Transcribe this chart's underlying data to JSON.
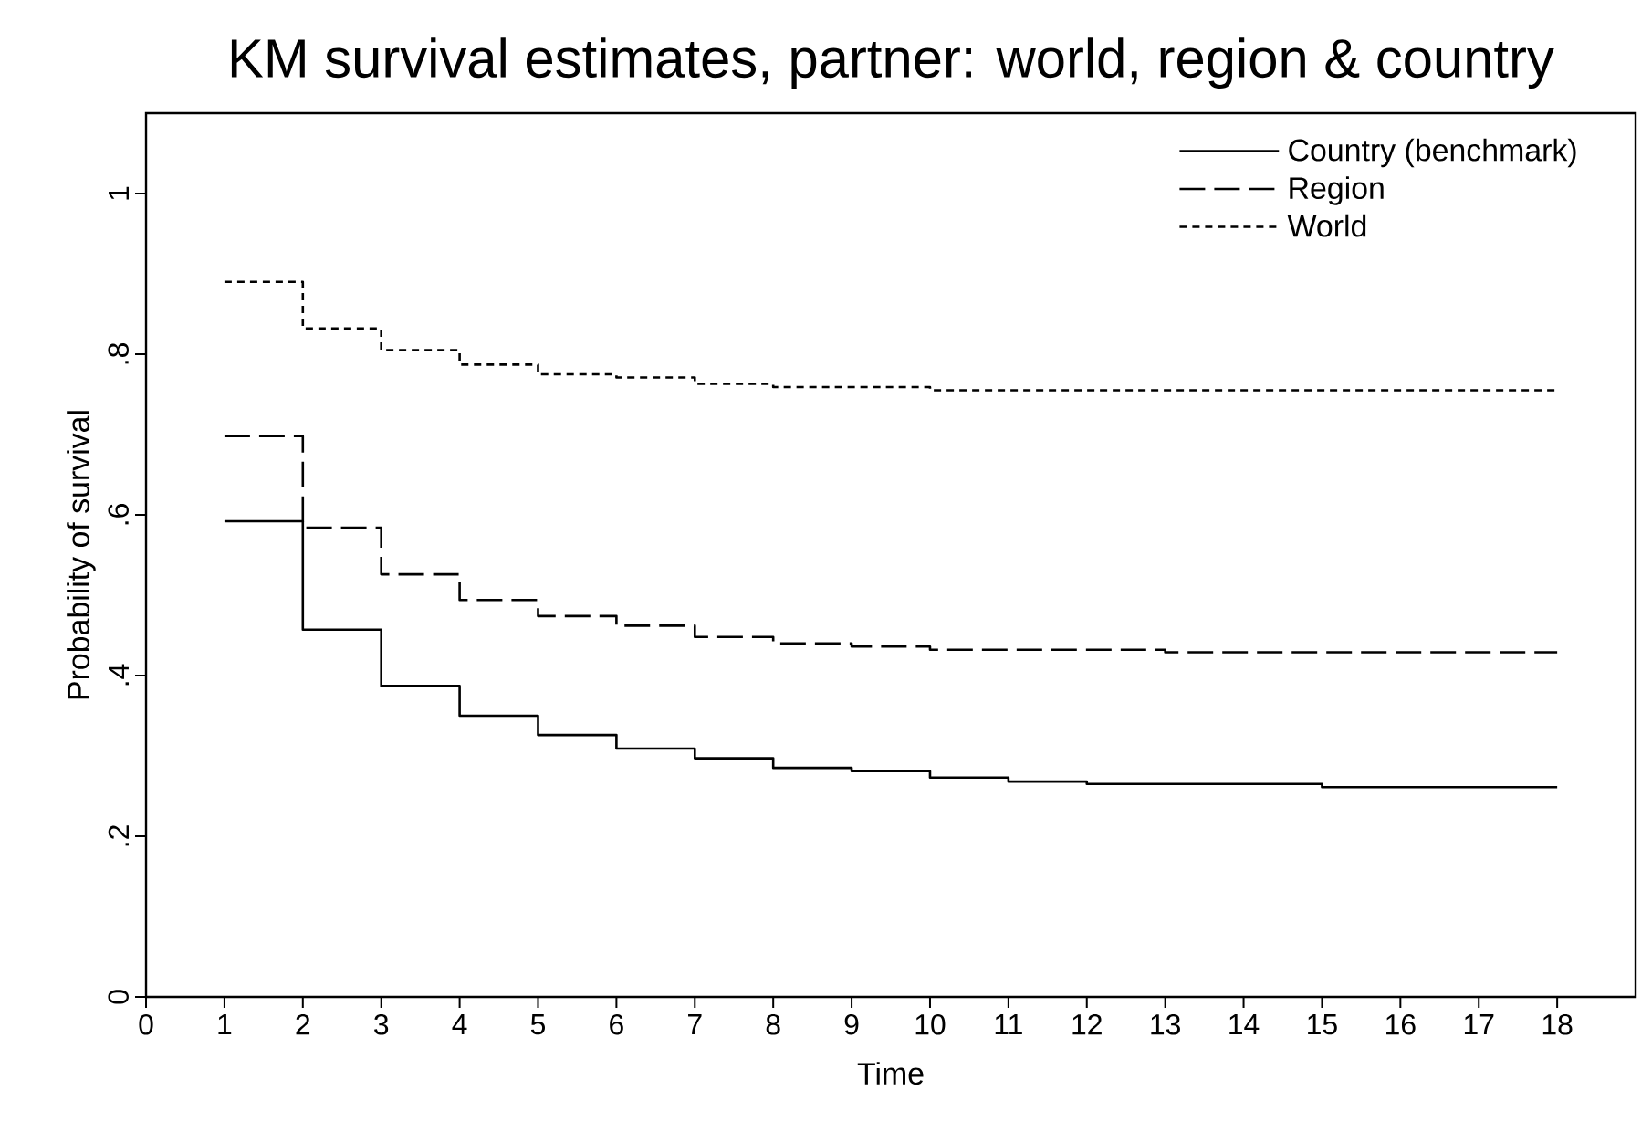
{
  "chart_data": {
    "type": "step",
    "title": "KM survival estimates, partner: world, region & country",
    "xlabel": "Time",
    "ylabel": "Probability of survival",
    "x": [
      1,
      2,
      3,
      4,
      5,
      6,
      7,
      8,
      9,
      10,
      11,
      12,
      13,
      14,
      15,
      16,
      17,
      18
    ],
    "series": [
      {
        "name": "Country (benchmark)",
        "color": "#000000",
        "line_style": "solid",
        "values": [
          0.592,
          0.457,
          0.387,
          0.35,
          0.326,
          0.309,
          0.297,
          0.285,
          0.281,
          0.273,
          0.268,
          0.265,
          0.265,
          0.265,
          0.261,
          0.261,
          0.261,
          0.261
        ]
      },
      {
        "name": "Region",
        "color": "#000000",
        "line_style": "dashed",
        "values": [
          0.698,
          0.584,
          0.526,
          0.494,
          0.474,
          0.462,
          0.448,
          0.44,
          0.436,
          0.432,
          0.432,
          0.432,
          0.429,
          0.429,
          0.429,
          0.429,
          0.429,
          0.429
        ]
      },
      {
        "name": "World",
        "color": "#000000",
        "line_style": "dotted",
        "values": [
          0.89,
          0.832,
          0.805,
          0.787,
          0.775,
          0.771,
          0.763,
          0.759,
          0.759,
          0.755,
          0.755,
          0.755,
          0.755,
          0.755,
          0.755,
          0.755,
          0.755,
          0.755
        ]
      }
    ],
    "xlim": [
      0,
      19
    ],
    "ylim": [
      0,
      1.1
    ],
    "xticks": [
      0,
      1,
      2,
      3,
      4,
      5,
      6,
      7,
      8,
      9,
      10,
      11,
      12,
      13,
      14,
      15,
      16,
      17,
      18
    ],
    "yticks": [
      {
        "value": 0,
        "label": "0"
      },
      {
        "value": 0.2,
        "label": ".2"
      },
      {
        "value": 0.4,
        "label": ".4"
      },
      {
        "value": 0.6,
        "label": ".6"
      },
      {
        "value": 0.8,
        "label": ".8"
      },
      {
        "value": 1,
        "label": "1"
      }
    ],
    "legend": "top right",
    "grid": false,
    "marker": "none"
  }
}
